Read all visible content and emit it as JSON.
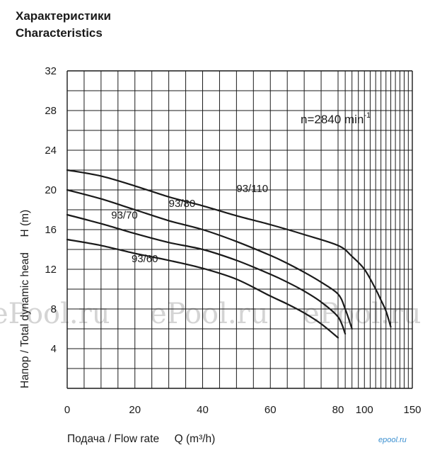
{
  "titles": {
    "ru": "Характеристики",
    "en": "Characteristics"
  },
  "watermarks": [
    "ePool.ru",
    "ePool.ru",
    "ePool.ru"
  ],
  "logo_text": "epool.ru",
  "colors": {
    "line": "#1a1a1a",
    "grid": "#1a1a1a",
    "watermark": "#d4d4d4",
    "logo": "#3a8fd0"
  },
  "chart_data": {
    "type": "line",
    "title": "",
    "xlabel": "Подача / Flow rate     Q (m³/h)",
    "ylabel": "Напор / Total dynamic head     H (m)",
    "annotation": {
      "base": "n=2840 min",
      "sup": "-1"
    },
    "x_scale": "log",
    "xlim": [
      0,
      150
    ],
    "ylim": [
      0,
      32
    ],
    "x_ticks": [
      0,
      20,
      40,
      60,
      80,
      100,
      150
    ],
    "y_ticks": [
      4,
      8,
      12,
      16,
      20,
      24,
      28,
      32
    ],
    "grid": true,
    "legend": "none",
    "series": [
      {
        "name": "93/110",
        "x": [
          0,
          10,
          20,
          30,
          40,
          50,
          60,
          70,
          80,
          90,
          100,
          110,
          115,
          120,
          125
        ],
        "y": [
          22,
          21.4,
          20.4,
          19.3,
          18.4,
          17.4,
          16.5,
          15.5,
          14.4,
          13.3,
          12.0,
          10.0,
          8.9,
          7.8,
          6.2
        ],
        "label_at": {
          "x": 50,
          "y": 19.8
        }
      },
      {
        "name": "93/80",
        "x": [
          0,
          10,
          20,
          30,
          40,
          50,
          60,
          65,
          70,
          75,
          80,
          85,
          90
        ],
        "y": [
          20,
          19.1,
          18.0,
          16.9,
          16.0,
          14.8,
          13.4,
          12.6,
          11.7,
          10.7,
          9.5,
          8.0,
          6.0
        ],
        "label_at": {
          "x": 30,
          "y": 18.3
        }
      },
      {
        "name": "93/70",
        "x": [
          0,
          10,
          20,
          30,
          40,
          50,
          60,
          65,
          70,
          75,
          80,
          85
        ],
        "y": [
          17.5,
          16.6,
          15.6,
          14.7,
          14.0,
          12.9,
          11.5,
          10.7,
          9.8,
          8.7,
          7.2,
          5.5
        ],
        "label_at": {
          "x": 13,
          "y": 17.1
        }
      },
      {
        "name": "93/60",
        "x": [
          0,
          10,
          20,
          30,
          40,
          50,
          60,
          65,
          70,
          75,
          80
        ],
        "y": [
          15,
          14.4,
          13.6,
          12.9,
          12.1,
          11.0,
          9.3,
          8.5,
          7.6,
          6.5,
          5.1
        ],
        "label_at": {
          "x": 19,
          "y": 12.7
        }
      }
    ]
  }
}
